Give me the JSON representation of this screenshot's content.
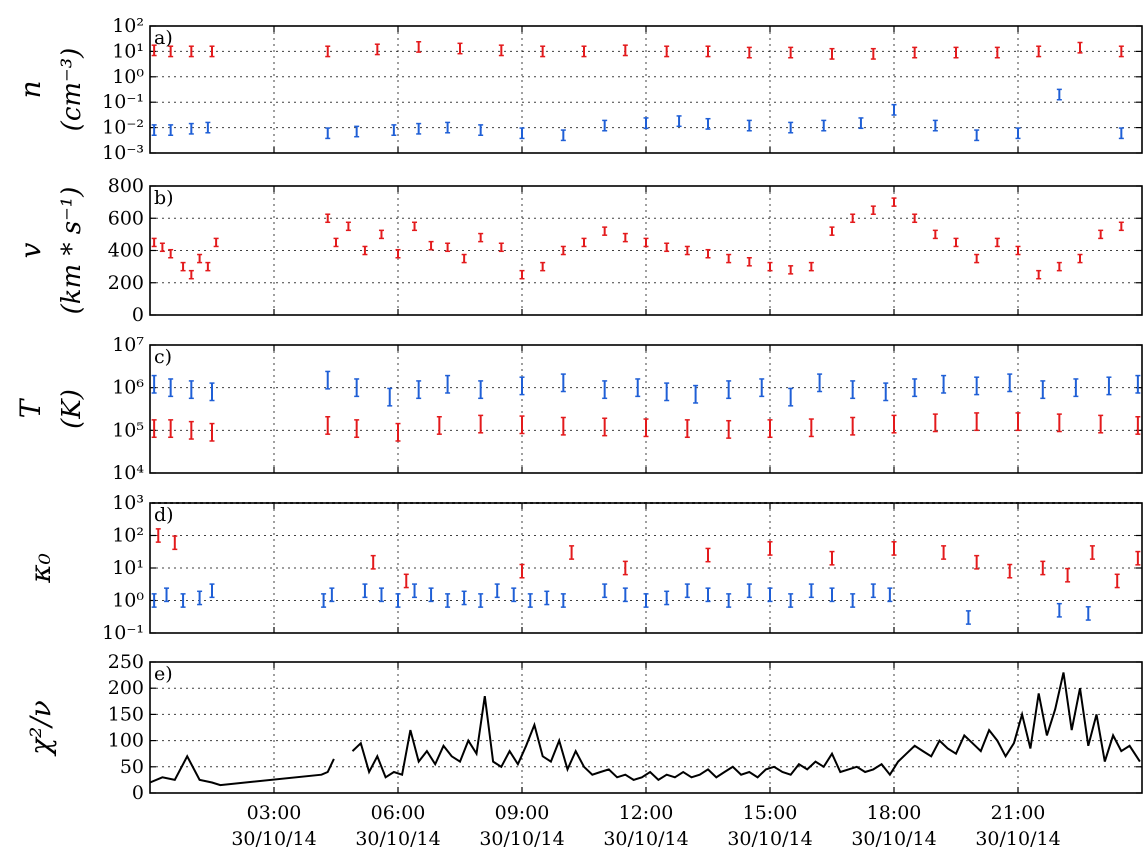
{
  "chart_data": [
    {
      "type": "scatter",
      "panel": "a)",
      "ylabel_sym": "n",
      "ylabel_unit": "(cm⁻³)",
      "yscale": "log",
      "ylim": [
        0.001,
        100
      ],
      "yticks": [
        "10⁻³",
        "10⁻²",
        "10⁻¹",
        "10⁰",
        "10¹",
        "10²"
      ],
      "error_bars": true,
      "series": [
        {
          "name": "",
          "color": "#e31a1c",
          "x": [
            0.1,
            0.5,
            1.0,
            1.5,
            4.3,
            5.5,
            6.5,
            7.5,
            8.5,
            9.5,
            10.5,
            11.5,
            12.5,
            13.5,
            14.5,
            15.5,
            16.5,
            17.5,
            18.5,
            19.5,
            20.5,
            21.5,
            22.5,
            23.5
          ],
          "y": [
            11,
            10,
            10,
            10,
            10,
            12,
            15,
            13,
            11,
            10,
            10,
            11,
            10,
            10,
            9,
            9,
            8,
            8,
            9,
            9,
            9,
            10,
            14,
            10
          ]
        },
        {
          "name": "",
          "color": "#1f5fd6",
          "x": [
            0.1,
            0.5,
            1.0,
            1.4,
            4.3,
            5.0,
            5.9,
            6.5,
            7.2,
            8.0,
            9.0,
            10.0,
            11.0,
            12.0,
            12.8,
            13.5,
            14.5,
            15.5,
            16.3,
            17.2,
            18.0,
            19.0,
            20.0,
            21.0,
            22.0,
            23.5
          ],
          "y": [
            0.008,
            0.008,
            0.009,
            0.01,
            0.006,
            0.007,
            0.008,
            0.009,
            0.01,
            0.008,
            0.006,
            0.005,
            0.012,
            0.015,
            0.018,
            0.014,
            0.012,
            0.01,
            0.012,
            0.015,
            0.05,
            0.012,
            0.005,
            0.006,
            0.2,
            0.006
          ]
        }
      ]
    },
    {
      "type": "scatter",
      "panel": "b)",
      "ylabel_sym": "v",
      "ylabel_unit": "(km * s⁻¹)",
      "ylim": [
        0,
        800
      ],
      "yticks": [
        "0",
        "200",
        "400",
        "600",
        "800"
      ],
      "error_bars": true,
      "series": [
        {
          "name": "",
          "color": "#e31a1c",
          "x": [
            0.1,
            0.3,
            0.5,
            0.8,
            1.0,
            1.2,
            1.4,
            1.6,
            4.3,
            4.5,
            4.8,
            5.2,
            5.6,
            6.0,
            6.4,
            6.8,
            7.2,
            7.6,
            8.0,
            8.5,
            9.0,
            9.5,
            10.0,
            10.5,
            11.0,
            11.5,
            12.0,
            12.5,
            13.0,
            13.5,
            14.0,
            14.5,
            15.0,
            15.5,
            16.0,
            16.5,
            17.0,
            17.5,
            18.0,
            18.5,
            19.0,
            19.5,
            20.0,
            20.5,
            21.0,
            21.5,
            22.0,
            22.5,
            23.0,
            23.5
          ],
          "y": [
            450,
            420,
            380,
            300,
            250,
            350,
            300,
            450,
            600,
            450,
            550,
            400,
            500,
            380,
            550,
            430,
            420,
            350,
            480,
            420,
            250,
            300,
            400,
            450,
            520,
            480,
            450,
            420,
            400,
            380,
            350,
            330,
            300,
            280,
            300,
            520,
            600,
            650,
            700,
            600,
            500,
            450,
            350,
            450,
            400,
            250,
            300,
            350,
            500,
            550
          ]
        }
      ]
    },
    {
      "type": "scatter",
      "panel": "c)",
      "ylabel_sym": "T",
      "ylabel_unit": "(K)",
      "yscale": "log",
      "ylim": [
        10000,
        10000000
      ],
      "yticks": [
        "10⁴",
        "10⁵",
        "10⁶",
        "10⁷"
      ],
      "error_bars": true,
      "series": [
        {
          "name": "",
          "color": "#e31a1c",
          "x": [
            0.1,
            0.5,
            1.0,
            1.5,
            4.3,
            5.0,
            6.0,
            7.0,
            8.0,
            9.0,
            10.0,
            11.0,
            12.0,
            13.0,
            14.0,
            15.0,
            16.0,
            17.0,
            18.0,
            19.0,
            20.0,
            21.0,
            22.0,
            23.0,
            23.9
          ],
          "y": [
            110000,
            110000,
            100000,
            90000,
            130000,
            110000,
            90000,
            130000,
            140000,
            135000,
            125000,
            120000,
            115000,
            110000,
            105000,
            110000,
            115000,
            125000,
            140000,
            150000,
            160000,
            160000,
            150000,
            140000,
            130000
          ]
        },
        {
          "name": "",
          "color": "#1f5fd6",
          "x": [
            0.1,
            0.5,
            1.0,
            1.5,
            4.3,
            5.0,
            5.8,
            6.5,
            7.2,
            8.0,
            9.0,
            10.0,
            11.0,
            11.8,
            12.5,
            13.2,
            14.0,
            14.8,
            15.5,
            16.2,
            17.0,
            17.8,
            18.5,
            19.2,
            20.0,
            20.8,
            21.6,
            22.4,
            23.2,
            23.9
          ],
          "y": [
            1200000,
            1000000,
            900000,
            800000,
            1500000,
            1000000,
            600000,
            900000,
            1200000,
            900000,
            1100000,
            1300000,
            900000,
            1000000,
            800000,
            700000,
            900000,
            1000000,
            600000,
            1300000,
            900000,
            800000,
            1000000,
            1200000,
            1100000,
            1300000,
            900000,
            1000000,
            1100000,
            1200000
          ]
        }
      ]
    },
    {
      "type": "scatter",
      "panel": "d)",
      "ylabel_sym": "κ₀",
      "yscale": "log",
      "ylim": [
        0.1,
        1000
      ],
      "yticks": [
        "10⁻¹",
        "10⁰",
        "10¹",
        "10²",
        "10³"
      ],
      "error_bars": true,
      "series": [
        {
          "name": "",
          "color": "#e31a1c",
          "x": [
            0.2,
            0.6,
            5.4,
            6.2,
            9.0,
            10.2,
            11.5,
            13.5,
            15.0,
            16.5,
            18.0,
            19.2,
            20.0,
            20.8,
            21.6,
            22.2,
            22.8,
            23.4,
            23.9
          ],
          "y": [
            100,
            60,
            15,
            4,
            8,
            30,
            10,
            25,
            40,
            20,
            40,
            30,
            15,
            8,
            10,
            6,
            30,
            4,
            20
          ]
        },
        {
          "name": "",
          "color": "#1f5fd6",
          "x": [
            0.1,
            0.4,
            0.8,
            1.2,
            1.5,
            4.2,
            4.4,
            5.2,
            5.6,
            6.0,
            6.4,
            6.8,
            7.2,
            7.6,
            8.0,
            8.4,
            8.8,
            9.2,
            9.6,
            10.0,
            11.0,
            11.5,
            12.0,
            12.5,
            13.0,
            13.5,
            14.0,
            14.5,
            15.0,
            15.5,
            16.0,
            16.5,
            17.0,
            17.5,
            17.9,
            19.8,
            22.0,
            22.7
          ],
          "y": [
            1,
            1.5,
            1,
            1.2,
            2,
            1,
            1.5,
            2,
            1.5,
            1,
            2,
            1.5,
            1,
            1.2,
            1,
            2,
            1.5,
            1,
            1.2,
            1,
            2,
            1.5,
            1,
            1.2,
            2,
            1.5,
            1,
            2,
            1.5,
            1,
            2,
            1.5,
            1,
            2,
            1.5,
            0.3,
            0.5,
            0.4
          ]
        },
        {
          "name": "",
          "color": "#555555",
          "x": [
            0.05,
            23.95
          ],
          "y": [
            1000,
            1000
          ]
        }
      ]
    },
    {
      "type": "line",
      "panel": "e)",
      "ylabel_sym": "χ²/ν",
      "ylim": [
        0,
        250
      ],
      "yticks": [
        "0",
        "50",
        "100",
        "150",
        "200",
        "250"
      ],
      "series": [
        {
          "name": "",
          "color": "#000000",
          "segments": [
            {
              "x": [
                0.0,
                0.3,
                0.6,
                0.9,
                1.2,
                1.5,
                1.7,
                4.15,
                4.3,
                4.45
              ],
              "y": [
                20,
                30,
                25,
                70,
                25,
                20,
                15,
                35,
                40,
                65
              ]
            },
            {
              "x": [
                4.9,
                5.1,
                5.3,
                5.5,
                5.7,
                5.9,
                6.1,
                6.3,
                6.5,
                6.7,
                6.9,
                7.1,
                7.3,
                7.5,
                7.7,
                7.9,
                8.1,
                8.3,
                8.5,
                8.7,
                8.9,
                9.1,
                9.3,
                9.5,
                9.7,
                9.9,
                10.1,
                10.3,
                10.5,
                10.7,
                10.9,
                11.1,
                11.3,
                11.5,
                11.7,
                11.9,
                12.1,
                12.3,
                12.5,
                12.7,
                12.9,
                13.1,
                13.3,
                13.5,
                13.7,
                13.9,
                14.1,
                14.3,
                14.5,
                14.7,
                14.9,
                15.1,
                15.3,
                15.5,
                15.7,
                15.9,
                16.1,
                16.3,
                16.5,
                16.7,
                16.9,
                17.1,
                17.3,
                17.5,
                17.7,
                17.9,
                18.1,
                18.3,
                18.5,
                18.7,
                18.9,
                19.1,
                19.3,
                19.5,
                19.7,
                19.9,
                20.1,
                20.3,
                20.5,
                20.7,
                20.9,
                21.1,
                21.3,
                21.5,
                21.7,
                21.9,
                22.1,
                22.3,
                22.5,
                22.7,
                22.9,
                23.1,
                23.3,
                23.5,
                23.7,
                23.95
              ],
              "y": [
                80,
                95,
                40,
                70,
                30,
                40,
                35,
                120,
                60,
                80,
                55,
                90,
                70,
                60,
                100,
                75,
                185,
                60,
                50,
                80,
                55,
                90,
                130,
                70,
                60,
                100,
                45,
                80,
                50,
                35,
                40,
                45,
                30,
                35,
                25,
                30,
                40,
                25,
                35,
                30,
                40,
                30,
                35,
                45,
                30,
                40,
                50,
                35,
                40,
                30,
                45,
                50,
                40,
                35,
                55,
                45,
                60,
                50,
                75,
                40,
                45,
                50,
                40,
                45,
                55,
                35,
                60,
                75,
                90,
                80,
                70,
                100,
                85,
                75,
                110,
                95,
                80,
                120,
                100,
                70,
                95,
                150,
                85,
                190,
                110,
                160,
                230,
                120,
                200,
                90,
                150,
                60,
                110,
                80,
                90,
                60
              ]
            }
          ]
        }
      ]
    }
  ],
  "x_axis": {
    "xlim_hours": [
      0,
      24
    ],
    "ticks": [
      {
        "hour": 3,
        "time": "03:00",
        "date": "30/10/14"
      },
      {
        "hour": 6,
        "time": "06:00",
        "date": "30/10/14"
      },
      {
        "hour": 9,
        "time": "09:00",
        "date": "30/10/14"
      },
      {
        "hour": 12,
        "time": "12:00",
        "date": "30/10/14"
      },
      {
        "hour": 15,
        "time": "15:00",
        "date": "30/10/14"
      },
      {
        "hour": 18,
        "time": "18:00",
        "date": "30/10/14"
      },
      {
        "hour": 21,
        "time": "21:00",
        "date": "30/10/14"
      }
    ]
  }
}
